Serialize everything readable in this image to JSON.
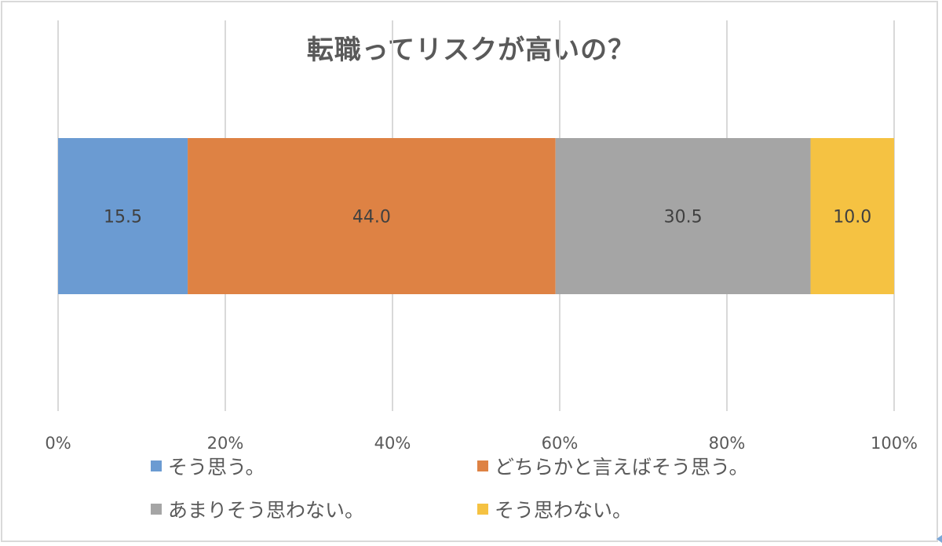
{
  "chart_data": {
    "type": "bar",
    "orientation": "horizontal",
    "stacked": true,
    "title": "転職ってリスクが高いの？",
    "xlim": [
      0,
      100
    ],
    "x_ticks": [
      "0%",
      "20%",
      "40%",
      "60%",
      "80%",
      "100%"
    ],
    "grid": true,
    "legend_placement": "bottom",
    "series": [
      {
        "name": "そう思う。",
        "values": [
          15.5
        ],
        "label": "15.5",
        "color": "#6b9bd2"
      },
      {
        "name": "どちらかと言えばそう思う。",
        "values": [
          44.0
        ],
        "label": "44.0",
        "color": "#de8244"
      },
      {
        "name": "あまりそう思わない。",
        "values": [
          30.5
        ],
        "label": "30.5",
        "color": "#a5a5a5"
      },
      {
        "name": "そう思わない。",
        "values": [
          10.0
        ],
        "label": "10.0",
        "color": "#f5c242"
      }
    ]
  }
}
